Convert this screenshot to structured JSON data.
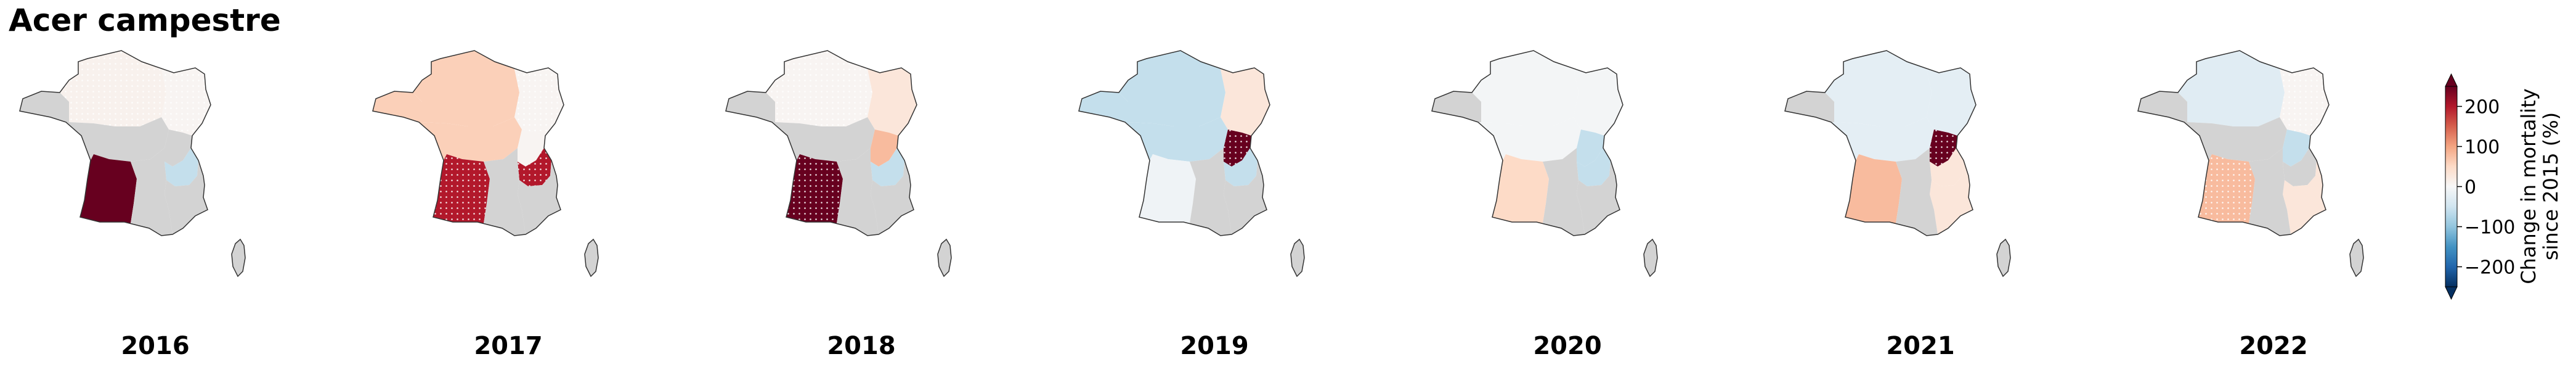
{
  "chart_data": {
    "type": "choropleth-map",
    "title": "Acer campestre",
    "colorbar": {
      "label_line1": "Change in mortality",
      "label_line2": "since 2015 (%)",
      "min": -250,
      "max": 250,
      "ticks": [
        200,
        100,
        0,
        -100,
        -200
      ],
      "tick_labels": [
        "200",
        "100",
        "0",
        "−100",
        "−200"
      ],
      "colormap": "RdBu_r",
      "extend": "both"
    },
    "no_data_color": "#d3d3d3",
    "regions": [
      "north",
      "northeast",
      "brittany",
      "center",
      "east",
      "southwest",
      "alps",
      "southeast",
      "south-center"
    ],
    "panels": [
      {
        "year": "2016",
        "values": {
          "north": 10,
          "northeast": 5,
          "brittany": null,
          "center": null,
          "east": null,
          "southwest": 260,
          "alps": -60,
          "southeast": null,
          "south-center": null
        },
        "significant": [
          "north",
          "northeast"
        ]
      },
      {
        "year": "2017",
        "values": {
          "north": 60,
          "northeast": 5,
          "brittany": 60,
          "center": 60,
          "east": 5,
          "southwest": 200,
          "alps": 200,
          "southeast": null,
          "south-center": null
        },
        "significant": [
          "northeast",
          "southwest",
          "alps"
        ]
      },
      {
        "year": "2018",
        "values": {
          "north": 5,
          "northeast": 30,
          "brittany": null,
          "center": null,
          "east": 80,
          "southwest": 260,
          "alps": -60,
          "southeast": null,
          "south-center": null
        },
        "significant": [
          "north",
          "southwest"
        ]
      },
      {
        "year": "2019",
        "values": {
          "north": -60,
          "northeast": 30,
          "brittany": -60,
          "center": -60,
          "east": 260,
          "southwest": -10,
          "alps": -60,
          "southeast": null,
          "south-center": null
        },
        "significant": [
          "east"
        ]
      },
      {
        "year": "2020",
        "values": {
          "north": -5,
          "northeast": -5,
          "brittany": null,
          "center": -5,
          "east": -60,
          "southwest": 50,
          "alps": -60,
          "southeast": null,
          "south-center": null
        },
        "significant": []
      },
      {
        "year": "2021",
        "values": {
          "north": -25,
          "northeast": -25,
          "brittany": null,
          "center": -25,
          "east": 260,
          "southwest": 80,
          "alps": 30,
          "southeast": 30,
          "south-center": null
        },
        "significant": [
          "east"
        ]
      },
      {
        "year": "2022",
        "values": {
          "north": -30,
          "northeast": 5,
          "brittany": null,
          "center": null,
          "east": -60,
          "southwest": 80,
          "alps": null,
          "southeast": 30,
          "south-center": null
        },
        "significant": [
          "northeast",
          "southwest"
        ]
      }
    ]
  }
}
